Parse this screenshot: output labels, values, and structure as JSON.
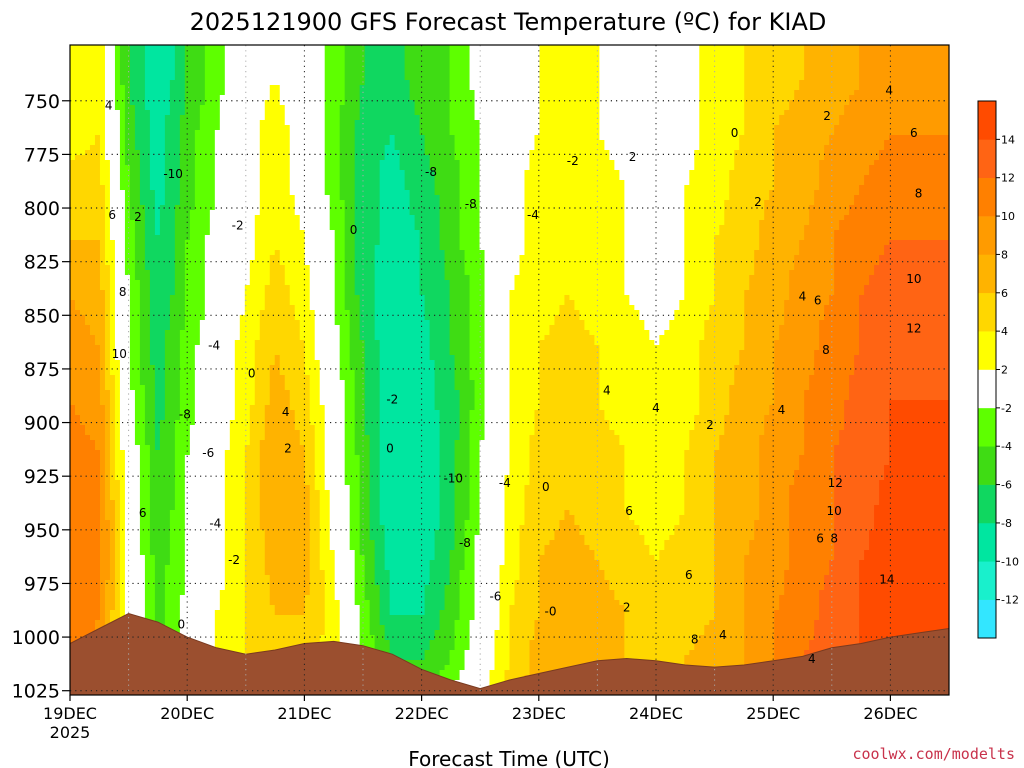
{
  "chart_data": {
    "type": "heatmap",
    "title": "2025121900 GFS Forecast Temperature (ºC) for KIAD",
    "xlabel": "Forecast Time (UTC)",
    "ylabel": "",
    "credit": "coolwx.com/modelts",
    "x_day_offsets": [
      0,
      1,
      2,
      3,
      4,
      5,
      6,
      7
    ],
    "x_tick_labels": [
      "19DEC",
      "20DEC",
      "21DEC",
      "22DEC",
      "23DEC",
      "24DEC",
      "25DEC",
      "26DEC"
    ],
    "x_year_label": "2025",
    "xlim": [
      0,
      7.5
    ],
    "y_ticks": [
      750,
      775,
      800,
      825,
      850,
      875,
      900,
      925,
      950,
      975,
      1000,
      1025
    ],
    "y_tick_labels": [
      "750",
      "775",
      "800",
      "825",
      "850",
      "875",
      "900",
      "925",
      "950",
      "975",
      "1000",
      "1025"
    ],
    "ylim_hpa": [
      724,
      1027
    ],
    "y_inverted": true,
    "grid": true,
    "colorbar": {
      "levels": [
        -14,
        -12,
        -10,
        -8,
        -6,
        -4,
        -2,
        2,
        4,
        6,
        8,
        10,
        12,
        14,
        16
      ],
      "tick_values": [
        -12,
        -10,
        -8,
        -6,
        -4,
        -2,
        2,
        4,
        6,
        8,
        10,
        12,
        14
      ],
      "tick_labels": [
        "-12",
        "-10",
        "-8",
        "-6",
        "-4",
        "-2",
        "2",
        "4",
        "6",
        "8",
        "10",
        "12",
        "14"
      ],
      "colors": [
        "#33e6ff",
        "#19f0cc",
        "#00e6a0",
        "#10d760",
        "#3fdc14",
        "#5eff00",
        "#ffffff",
        "#ffff00",
        "#ffd700",
        "#ffb300",
        "#ff9b00",
        "#ff8000",
        "#ff6414",
        "#ff4b00"
      ]
    },
    "surface_pressure": {
      "x": [
        0,
        0.25,
        0.5,
        0.75,
        1,
        1.25,
        1.5,
        1.75,
        2,
        2.25,
        2.5,
        2.75,
        3,
        3.25,
        3.5,
        3.75,
        4,
        4.25,
        4.5,
        4.75,
        5,
        5.25,
        5.5,
        5.75,
        6,
        6.25,
        6.5,
        6.75,
        7,
        7.25,
        7.5
      ],
      "hpa": [
        1003,
        996,
        989,
        993,
        1000,
        1005,
        1008,
        1006,
        1003,
        1002,
        1004,
        1008,
        1015,
        1020,
        1024,
        1020,
        1017,
        1014,
        1011,
        1010,
        1011,
        1013,
        1014,
        1013,
        1011,
        1009,
        1005,
        1003,
        1000,
        998,
        996
      ]
    },
    "values_degC": [
      [
        2,
        3,
        -6,
        -10,
        -6,
        -3,
        1,
        2,
        0,
        -3,
        -6,
        -7,
        -5,
        -4,
        -1,
        1,
        2,
        3,
        2,
        1,
        0,
        1,
        3,
        4,
        5,
        6,
        7,
        8,
        9,
        9,
        8,
        8
      ],
      [
        3,
        4,
        -5,
        -9,
        -5,
        -2,
        1,
        3,
        1,
        -3,
        -7,
        -8,
        -6,
        -4,
        -2,
        1,
        2,
        3,
        2,
        1,
        0,
        1,
        3,
        4,
        6,
        7,
        8,
        9,
        10,
        10,
        10,
        9
      ],
      [
        5,
        5,
        -4,
        -9,
        -5,
        -2,
        1,
        3,
        1,
        -3,
        -7,
        -9,
        -7,
        -5,
        -2,
        1,
        3,
        4,
        3,
        2,
        1,
        2,
        3,
        5,
        6,
        7,
        9,
        10,
        11,
        11,
        11,
        10
      ],
      [
        6,
        6,
        -3,
        -8,
        -4,
        -1,
        1,
        4,
        2,
        -2,
        -7,
        -9,
        -8,
        -5,
        -2,
        1,
        3,
        4,
        3,
        2,
        1,
        2,
        4,
        5,
        7,
        8,
        10,
        11,
        12,
        12,
        12,
        11
      ],
      [
        8,
        7,
        -2,
        -8,
        -4,
        -1,
        2,
        5,
        3,
        -2,
        -7,
        -10,
        -8,
        -6,
        -3,
        2,
        3,
        4,
        3,
        2,
        1,
        2,
        4,
        6,
        7,
        9,
        10,
        12,
        13,
        13,
        13,
        12
      ],
      [
        9,
        8,
        -2,
        -7,
        -3,
        0,
        3,
        6,
        4,
        -1,
        -6,
        -10,
        -9,
        -6,
        -3,
        2,
        4,
        5,
        4,
        3,
        2,
        3,
        5,
        6,
        8,
        9,
        11,
        12,
        13,
        14,
        13,
        12
      ],
      [
        10,
        9,
        -1,
        -7,
        -3,
        0,
        3,
        7,
        5,
        0,
        -6,
        -10,
        -9,
        -7,
        -3,
        2,
        4,
        5,
        4,
        3,
        2,
        3,
        5,
        7,
        8,
        10,
        11,
        13,
        14,
        14,
        14,
        13
      ],
      [
        11,
        10,
        0,
        -6,
        -2,
        1,
        4,
        8,
        6,
        0,
        -5,
        -10,
        -10,
        -7,
        -2,
        2,
        5,
        6,
        5,
        4,
        3,
        4,
        6,
        7,
        9,
        10,
        12,
        13,
        14,
        15,
        14,
        13
      ],
      [
        12,
        11,
        0,
        -6,
        -2,
        1,
        4,
        8,
        7,
        1,
        -5,
        -10,
        -10,
        -7,
        -2,
        3,
        5,
        6,
        5,
        4,
        3,
        4,
        6,
        7,
        9,
        11,
        12,
        13,
        15,
        15,
        14,
        14
      ],
      [
        12,
        11,
        1,
        -5,
        -2,
        1,
        4,
        7,
        7,
        2,
        -4,
        -9,
        -9,
        -6,
        -1,
        3,
        6,
        7,
        6,
        5,
        4,
        5,
        6,
        8,
        9,
        11,
        12,
        14,
        15,
        15,
        15,
        14
      ],
      [
        12,
        10,
        1,
        -5,
        -1,
        2,
        4,
        6,
        6,
        3,
        -3,
        -8,
        -8,
        -5,
        -1,
        4,
        6,
        7,
        7,
        6,
        5,
        5,
        6,
        8,
        10,
        11,
        13,
        14,
        15,
        15,
        15,
        14
      ],
      [
        11,
        9,
        2,
        -4,
        -1,
        2,
        4,
        5,
        5,
        3,
        -2,
        -6,
        -6,
        -4,
        0,
        4,
        7,
        8,
        7,
        6,
        5,
        6,
        7,
        8,
        10,
        12,
        13,
        14,
        15,
        15,
        15,
        15
      ],
      [
        10,
        8,
        2,
        -3,
        0,
        2,
        3,
        4,
        4,
        3,
        -1,
        -4,
        -5,
        -2,
        1,
        5,
        7,
        8,
        7,
        6,
        5,
        6,
        7,
        8,
        10,
        12,
        13,
        14,
        15,
        15,
        15,
        15
      ]
    ],
    "values_pressure_hpa": [
      740,
      765,
      790,
      815,
      840,
      865,
      890,
      915,
      940,
      965,
      990,
      1010,
      1025
    ],
    "values_x_step_days": 0.25,
    "contour_labels": [
      {
        "text": "4",
        "x": 0.33,
        "p": 754
      },
      {
        "text": "-10",
        "x": 0.88,
        "p": 786
      },
      {
        "text": "6",
        "x": 0.36,
        "p": 805
      },
      {
        "text": "2",
        "x": 0.58,
        "p": 806
      },
      {
        "text": "-2",
        "x": 1.43,
        "p": 810
      },
      {
        "text": "0",
        "x": 2.42,
        "p": 812
      },
      {
        "text": "8",
        "x": 0.45,
        "p": 841
      },
      {
        "text": "10",
        "x": 0.42,
        "p": 870
      },
      {
        "text": "-4",
        "x": 1.23,
        "p": 866
      },
      {
        "text": "0",
        "x": 1.55,
        "p": 879
      },
      {
        "text": "-8",
        "x": 0.98,
        "p": 898
      },
      {
        "text": "4",
        "x": 1.84,
        "p": 897
      },
      {
        "text": "-2",
        "x": 2.75,
        "p": 891
      },
      {
        "text": "-6",
        "x": 1.18,
        "p": 916
      },
      {
        "text": "2",
        "x": 1.86,
        "p": 914
      },
      {
        "text": "0",
        "x": 2.73,
        "p": 914
      },
      {
        "text": "6",
        "x": 0.62,
        "p": 944
      },
      {
        "text": "-4",
        "x": 1.24,
        "p": 949
      },
      {
        "text": "-2",
        "x": 1.4,
        "p": 966
      },
      {
        "text": "0",
        "x": 0.95,
        "p": 996
      },
      {
        "text": "-8",
        "x": 3.08,
        "p": 785
      },
      {
        "text": "-8",
        "x": 3.42,
        "p": 800
      },
      {
        "text": "-2",
        "x": 4.29,
        "p": 780
      },
      {
        "text": "-4",
        "x": 3.95,
        "p": 805
      },
      {
        "text": "-10",
        "x": 3.27,
        "p": 928
      },
      {
        "text": "-4",
        "x": 3.71,
        "p": 930
      },
      {
        "text": "-8",
        "x": 3.37,
        "p": 958
      },
      {
        "text": "-6",
        "x": 3.63,
        "p": 983
      },
      {
        "text": "0",
        "x": 4.06,
        "p": 932
      },
      {
        "text": "-0",
        "x": 4.1,
        "p": 990
      },
      {
        "text": "2",
        "x": 4.8,
        "p": 778
      },
      {
        "text": "0",
        "x": 5.67,
        "p": 767
      },
      {
        "text": "2",
        "x": 5.87,
        "p": 799
      },
      {
        "text": "2",
        "x": 6.46,
        "p": 759
      },
      {
        "text": "4",
        "x": 6.99,
        "p": 747
      },
      {
        "text": "6",
        "x": 7.2,
        "p": 767
      },
      {
        "text": "8",
        "x": 7.24,
        "p": 795
      },
      {
        "text": "10",
        "x": 7.2,
        "p": 835
      },
      {
        "text": "12",
        "x": 7.2,
        "p": 858
      },
      {
        "text": "4",
        "x": 6.25,
        "p": 843
      },
      {
        "text": "6",
        "x": 6.38,
        "p": 845
      },
      {
        "text": "8",
        "x": 6.45,
        "p": 868
      },
      {
        "text": "4",
        "x": 4.58,
        "p": 887
      },
      {
        "text": "4",
        "x": 5.0,
        "p": 895
      },
      {
        "text": "2",
        "x": 5.46,
        "p": 903
      },
      {
        "text": "4",
        "x": 6.07,
        "p": 896
      },
      {
        "text": "6",
        "x": 4.77,
        "p": 943
      },
      {
        "text": "12",
        "x": 6.53,
        "p": 930
      },
      {
        "text": "10",
        "x": 6.52,
        "p": 943
      },
      {
        "text": "6",
        "x": 6.4,
        "p": 956
      },
      {
        "text": "8",
        "x": 6.52,
        "p": 956
      },
      {
        "text": "14",
        "x": 6.97,
        "p": 975
      },
      {
        "text": "6",
        "x": 5.28,
        "p": 973
      },
      {
        "text": "8",
        "x": 5.33,
        "p": 1003
      },
      {
        "text": "4",
        "x": 5.57,
        "p": 1001
      },
      {
        "text": "2",
        "x": 4.75,
        "p": 988
      },
      {
        "text": "4",
        "x": 6.33,
        "p": 1012
      }
    ]
  }
}
